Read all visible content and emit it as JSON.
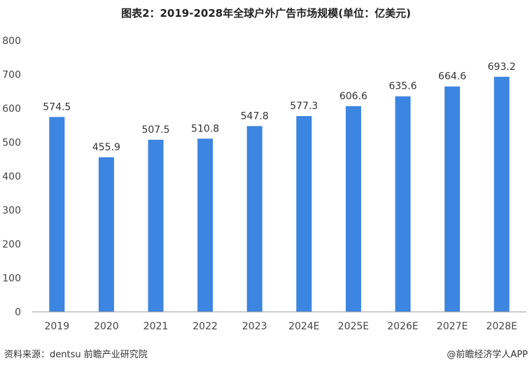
{
  "chart_data": {
    "type": "bar",
    "title": "图表2：2019-2028年全球户外广告市场规模(单位：亿美元)",
    "categories": [
      "2019",
      "2020",
      "2021",
      "2022",
      "2023",
      "2024E",
      "2025E",
      "2026E",
      "2027E",
      "2028E"
    ],
    "values": [
      574.5,
      455.9,
      507.5,
      510.8,
      547.8,
      577.3,
      606.6,
      635.6,
      664.6,
      693.2
    ],
    "value_labels": [
      "574.5",
      "455.9",
      "507.5",
      "510.8",
      "547.8",
      "577.3",
      "606.6",
      "635.6",
      "664.6",
      "693.2"
    ],
    "y_ticks": [
      "0",
      "100",
      "200",
      "300",
      "400",
      "500",
      "600",
      "700",
      "800"
    ],
    "ylim": [
      0,
      800
    ],
    "grid": false,
    "legend": "none",
    "bar_color": "#3C85E0"
  },
  "footer": {
    "source": "资料来源：dentsu 前瞻产业研究院",
    "credit": "@前瞻经济学人APP"
  }
}
